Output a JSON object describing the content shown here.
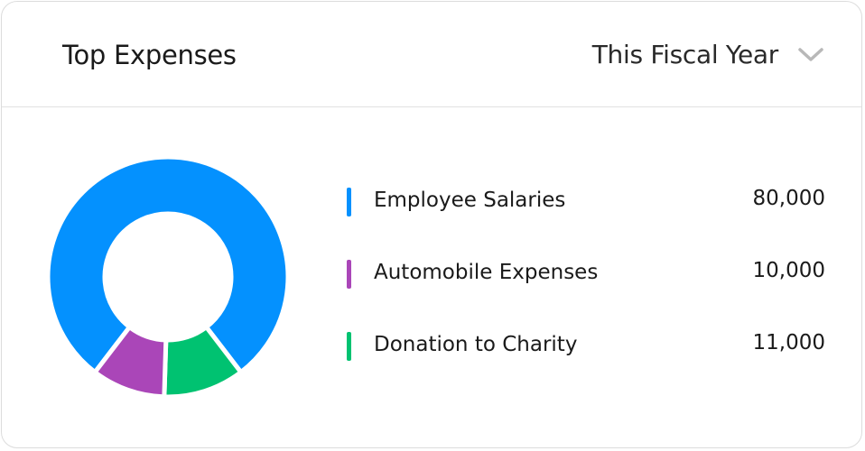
{
  "header": {
    "title": "Top Expenses",
    "period": "This Fiscal Year",
    "period_icon": "chevron-down-icon"
  },
  "chart_data": {
    "type": "pie",
    "variant": "donut",
    "categories": [
      "Employee Salaries",
      "Automobile Expenses",
      "Donation to Charity"
    ],
    "values": [
      80000,
      10000,
      11000
    ],
    "value_labels": [
      "80,000",
      "10,000",
      "11,000"
    ],
    "colors": [
      "#0491fe",
      "#aa46b8",
      "#00c271"
    ],
    "legend": "right"
  }
}
